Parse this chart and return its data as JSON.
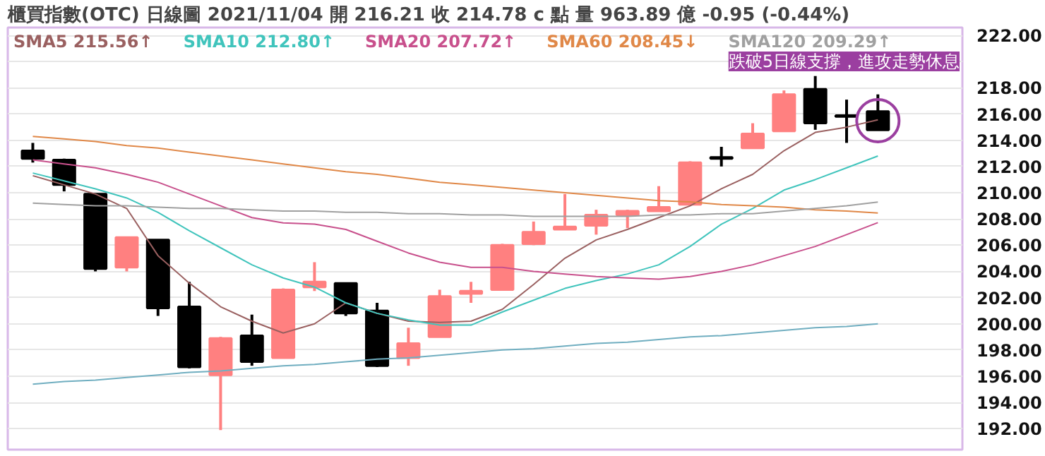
{
  "chart_data": {
    "type": "candlestick",
    "title": "櫃買指數(OTC)  日線圖  2021/11/04  開 216.21  收 214.78 c 點  量 963.89 億  -0.95 (-0.44%)",
    "categories": [
      null,
      null,
      null,
      null,
      null,
      null,
      null,
      null,
      null,
      null,
      null,
      null,
      null,
      null,
      null,
      null,
      null,
      null,
      null,
      null,
      null,
      null,
      null,
      null,
      null,
      null,
      null,
      null
    ],
    "ohlc": [
      [
        213.2,
        213.8,
        212.3,
        212.6
      ],
      [
        212.5,
        212.6,
        210.1,
        210.6
      ],
      [
        209.9,
        209.9,
        204.0,
        204.2
      ],
      [
        204.3,
        206.6,
        204.0,
        206.6
      ],
      [
        206.4,
        206.4,
        200.6,
        201.2
      ],
      [
        201.3,
        203.2,
        196.6,
        196.7
      ],
      [
        196.1,
        199.0,
        191.9,
        198.9
      ],
      [
        199.1,
        200.7,
        196.8,
        197.1
      ],
      [
        197.4,
        202.7,
        197.4,
        202.6
      ],
      [
        202.8,
        204.7,
        202.5,
        203.2
      ],
      [
        203.1,
        203.1,
        200.6,
        200.8
      ],
      [
        201.0,
        201.6,
        196.7,
        196.8
      ],
      [
        197.4,
        199.7,
        196.8,
        198.5
      ],
      [
        199.0,
        202.6,
        199.0,
        202.1
      ],
      [
        202.3,
        203.2,
        201.6,
        202.5
      ],
      [
        202.6,
        206.1,
        202.6,
        206.0
      ],
      [
        206.1,
        207.8,
        206.0,
        207.0
      ],
      [
        207.2,
        209.9,
        207.2,
        207.4
      ],
      [
        207.5,
        208.7,
        206.8,
        208.3
      ],
      [
        208.3,
        208.7,
        207.3,
        208.6
      ],
      [
        208.6,
        210.5,
        208.6,
        208.9
      ],
      [
        209.1,
        212.4,
        209.1,
        212.3
      ],
      [
        212.7,
        213.5,
        212.0,
        212.6
      ],
      [
        213.4,
        215.3,
        213.4,
        214.5
      ],
      [
        214.7,
        217.8,
        214.7,
        217.5
      ],
      [
        217.9,
        218.9,
        214.8,
        215.3
      ],
      [
        215.9,
        217.1,
        213.8,
        215.8
      ],
      [
        216.21,
        217.5,
        214.78,
        214.78
      ]
    ],
    "colors": [
      "#000000",
      "#000000",
      "#000000",
      "#ff8080",
      "#000000",
      "#000000",
      "#ff8080",
      "#000000",
      "#ff8080",
      "#ff8080",
      "#000000",
      "#000000",
      "#ff8080",
      "#ff8080",
      "#ff8080",
      "#ff8080",
      "#ff8080",
      "#ff8080",
      "#ff8080",
      "#ff8080",
      "#ff8080",
      "#ff8080",
      "#000000",
      "#ff8080",
      "#ff8080",
      "#000000",
      "#000000",
      "#000000"
    ],
    "series": [
      {
        "type": "line",
        "name": "SMA5 215.56↑",
        "color": "#9a6060",
        "values": [
          211.3,
          210.6,
          209.9,
          208.8,
          205.2,
          203.1,
          201.3,
          200.2,
          199.3,
          200.0,
          201.6,
          200.8,
          200.2,
          200.1,
          200.2,
          201.1,
          203.0,
          205.0,
          206.4,
          207.2,
          208.1,
          209.0,
          210.3,
          211.4,
          213.2,
          214.6,
          215.0,
          215.56
        ]
      },
      {
        "type": "line",
        "name": "SMA10 212.80↑",
        "color": "#40c4bc",
        "values": [
          211.5,
          210.9,
          210.3,
          209.6,
          208.5,
          207.1,
          205.8,
          204.5,
          203.5,
          202.8,
          201.6,
          200.8,
          200.3,
          199.9,
          199.9,
          200.9,
          201.8,
          202.7,
          203.3,
          203.8,
          204.5,
          205.9,
          207.6,
          208.8,
          210.2,
          211.0,
          211.9,
          212.8
        ]
      },
      {
        "type": "line",
        "name": "SMA20 207.72↑",
        "color": "#c8508c",
        "values": [
          212.5,
          212.2,
          211.9,
          211.4,
          210.8,
          209.9,
          209.0,
          208.1,
          207.7,
          207.6,
          207.2,
          206.3,
          205.4,
          204.7,
          204.3,
          204.3,
          204.0,
          203.8,
          203.6,
          203.5,
          203.4,
          203.6,
          204.0,
          204.5,
          205.2,
          205.9,
          206.8,
          207.72
        ]
      },
      {
        "type": "line",
        "name": "SMA60 208.45↓",
        "color": "#e08848",
        "values": [
          214.3,
          214.1,
          213.9,
          213.6,
          213.4,
          213.1,
          212.8,
          212.5,
          212.2,
          211.9,
          211.6,
          211.4,
          211.1,
          210.8,
          210.6,
          210.4,
          210.2,
          210.0,
          209.8,
          209.6,
          209.4,
          209.3,
          209.1,
          209.0,
          208.9,
          208.7,
          208.6,
          208.45
        ]
      },
      {
        "type": "line",
        "name": "SMA120 209.29↑",
        "color": "#a0a0a0",
        "values": [
          209.2,
          209.1,
          209.0,
          209.0,
          208.9,
          208.8,
          208.8,
          208.7,
          208.6,
          208.6,
          208.5,
          208.5,
          208.4,
          208.4,
          208.3,
          208.3,
          208.2,
          208.2,
          208.2,
          208.2,
          208.3,
          208.3,
          208.4,
          208.4,
          208.6,
          208.8,
          209.0,
          209.29
        ]
      },
      {
        "type": "line",
        "color": "#70aec0",
        "values": [
          195.4,
          195.6,
          195.7,
          195.9,
          196.1,
          196.3,
          196.4,
          196.6,
          196.8,
          196.9,
          197.1,
          197.3,
          197.4,
          197.6,
          197.8,
          198.0,
          198.1,
          198.3,
          198.5,
          198.6,
          198.8,
          199.0,
          199.1,
          199.3,
          199.5,
          199.7,
          199.8,
          200.0
        ]
      }
    ],
    "annotations": [
      "跌破5日線支撐，進攻走勢休息"
    ],
    "ylim": [
      190.4,
      222.6
    ],
    "yticks": [
      {
        "value": 192,
        "label": "192.00"
      },
      {
        "value": 194,
        "label": "194.00"
      },
      {
        "value": 196,
        "label": "196.00"
      },
      {
        "value": 198,
        "label": "198.00"
      },
      {
        "value": 200,
        "label": "200.00"
      },
      {
        "value": 202,
        "label": "202.00"
      },
      {
        "value": 204,
        "label": "204.00"
      },
      {
        "value": 206,
        "label": "206.00"
      },
      {
        "value": 208,
        "label": "208.00"
      },
      {
        "value": 210,
        "label": "210.00"
      },
      {
        "value": 212,
        "label": "212.00"
      },
      {
        "value": 214,
        "label": "214.00"
      },
      {
        "value": 216,
        "label": "216.00"
      },
      {
        "value": 218,
        "label": "218.00"
      },
      {
        "value": 220,
        "label": null
      },
      {
        "value": 222,
        "label": "222.00"
      }
    ],
    "grid": "y",
    "legend": "top left",
    "tick_labels": "y"
  }
}
